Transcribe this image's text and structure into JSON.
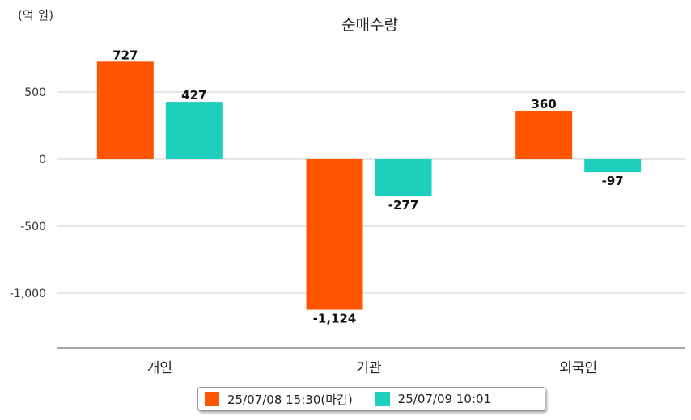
{
  "chart_data": {
    "type": "bar",
    "title": "순매수량",
    "unit_label": "(억 원)",
    "categories": [
      "개인",
      "기관",
      "외국인"
    ],
    "series": [
      {
        "name": "25/07/08 15:30(마감)",
        "color": "#ff5500",
        "values": [
          727,
          -1124,
          360
        ],
        "labels": [
          "727",
          "-1,124",
          "360"
        ]
      },
      {
        "name": "25/07/09 10:01",
        "color": "#1ecfbd",
        "values": [
          427,
          -277,
          -97
        ],
        "labels": [
          "427",
          "-277",
          "-97"
        ]
      }
    ],
    "ylim": [
      -1400,
      900
    ],
    "yticks": [
      500,
      0,
      -500,
      -1000
    ],
    "ytick_labels": [
      "500",
      "0",
      "-500",
      "-1,000"
    ],
    "grid": true,
    "legend_position": "bottom"
  }
}
